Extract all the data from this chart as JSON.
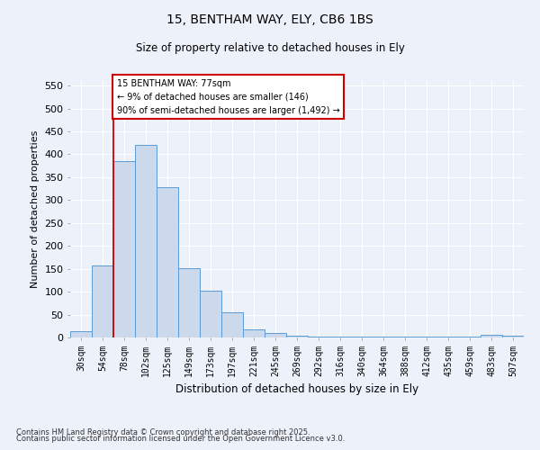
{
  "title1": "15, BENTHAM WAY, ELY, CB6 1BS",
  "title2": "Size of property relative to detached houses in Ely",
  "xlabel": "Distribution of detached houses by size in Ely",
  "ylabel": "Number of detached properties",
  "bar_labels": [
    "30sqm",
    "54sqm",
    "78sqm",
    "102sqm",
    "125sqm",
    "149sqm",
    "173sqm",
    "197sqm",
    "221sqm",
    "245sqm",
    "269sqm",
    "292sqm",
    "316sqm",
    "340sqm",
    "364sqm",
    "388sqm",
    "412sqm",
    "435sqm",
    "459sqm",
    "483sqm",
    "507sqm"
  ],
  "bar_values": [
    13,
    157,
    385,
    420,
    328,
    152,
    102,
    55,
    18,
    10,
    4,
    2,
    1,
    1,
    1,
    1,
    1,
    1,
    1,
    5,
    4
  ],
  "bar_color": "#ccd9ec",
  "bar_edge_color": "#5b9bd5",
  "red_line_index": 2,
  "annotation_line1": "15 BENTHAM WAY: 77sqm",
  "annotation_line2": "← 9% of detached houses are smaller (146)",
  "annotation_line3": "90% of semi-detached houses are larger (1,492) →",
  "annotation_box_color": "#ffffff",
  "annotation_box_edge": "#cc0000",
  "red_line_color": "#cc0000",
  "ylim": [
    0,
    560
  ],
  "yticks": [
    0,
    50,
    100,
    150,
    200,
    250,
    300,
    350,
    400,
    450,
    500,
    550
  ],
  "background_color": "#edf2fa",
  "footer1": "Contains HM Land Registry data © Crown copyright and database right 2025.",
  "footer2": "Contains public sector information licensed under the Open Government Licence v3.0.",
  "grid_color": "#ffffff",
  "figsize": [
    6.0,
    5.0
  ],
  "dpi": 100
}
